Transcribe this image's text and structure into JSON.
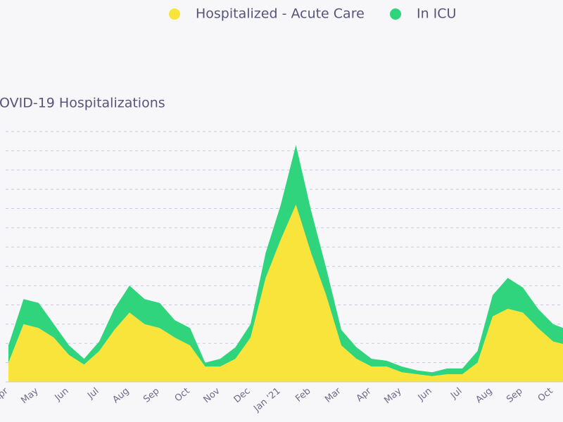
{
  "chart_data": {
    "type": "area",
    "title": "OVID-19 Hospitalizations",
    "stacked": true,
    "grid": true,
    "categories": [
      "Apr",
      null,
      "May",
      null,
      "Jun",
      null,
      "Jul",
      null,
      "Aug",
      null,
      "Sep",
      null,
      "Oct",
      null,
      "Nov",
      null,
      "Dec",
      null,
      "Jan '21",
      null,
      "Feb",
      null,
      "Mar",
      null,
      "Apr",
      null,
      "May",
      null,
      "Jun",
      null,
      "Jul",
      null,
      "Aug",
      null,
      "Sep",
      null,
      "Oct",
      null
    ],
    "series": [
      {
        "name": "Hospitalized - Acute Care",
        "color": "#f8e43a",
        "values": [
          1.0,
          3.0,
          2.8,
          2.3,
          1.4,
          0.9,
          1.6,
          2.7,
          3.6,
          3.0,
          2.8,
          2.3,
          1.9,
          0.8,
          0.8,
          1.2,
          2.3,
          5.4,
          7.4,
          9.2,
          6.7,
          4.5,
          1.9,
          1.2,
          0.8,
          0.8,
          0.5,
          0.4,
          0.3,
          0.4,
          0.4,
          1.0,
          3.4,
          3.8,
          3.6,
          2.8,
          2.1,
          1.9
        ]
      },
      {
        "name": "In ICU",
        "color": "#2fd47c",
        "values": [
          0.9,
          1.3,
          1.3,
          0.7,
          0.5,
          0.3,
          0.5,
          1.1,
          1.4,
          1.3,
          1.3,
          0.9,
          0.9,
          0.2,
          0.4,
          0.6,
          0.7,
          1.3,
          1.8,
          3.1,
          2.2,
          1.4,
          0.8,
          0.6,
          0.4,
          0.3,
          0.3,
          0.2,
          0.2,
          0.3,
          0.3,
          0.6,
          1.1,
          1.6,
          1.3,
          1.0,
          0.9,
          0.8
        ]
      }
    ],
    "ylim": [
      0,
      13
    ],
    "yticks": [
      0,
      1,
      2,
      3,
      4,
      5,
      6,
      7,
      8,
      9,
      10,
      11,
      12,
      13
    ]
  }
}
